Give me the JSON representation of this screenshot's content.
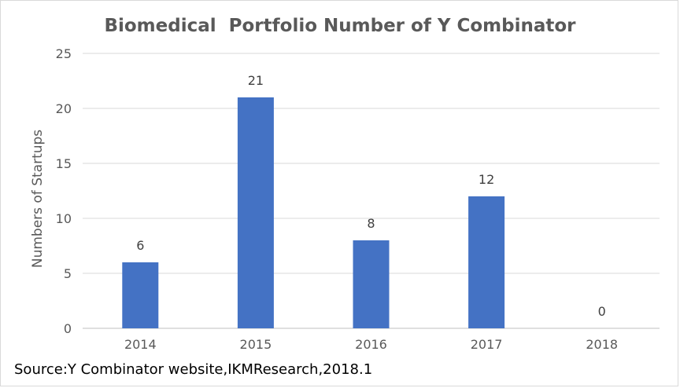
{
  "chart_data": {
    "type": "bar",
    "title": "Biomedical  Portfolio Number of Y Combinator",
    "ylabel": "Numbers of  Startups",
    "xlabel": "",
    "categories": [
      "2014",
      "2015",
      "2016",
      "2017",
      "2018"
    ],
    "values": [
      6,
      21,
      8,
      12,
      0
    ],
    "ylim": [
      0,
      25
    ],
    "yticks": [
      0,
      5,
      10,
      15,
      20,
      25
    ],
    "grid": true,
    "legend": "none",
    "bar_color": "#4472c4",
    "data_labels": true
  },
  "source_note": "Source:Y Combinator website,IKMResearch,2018.1"
}
